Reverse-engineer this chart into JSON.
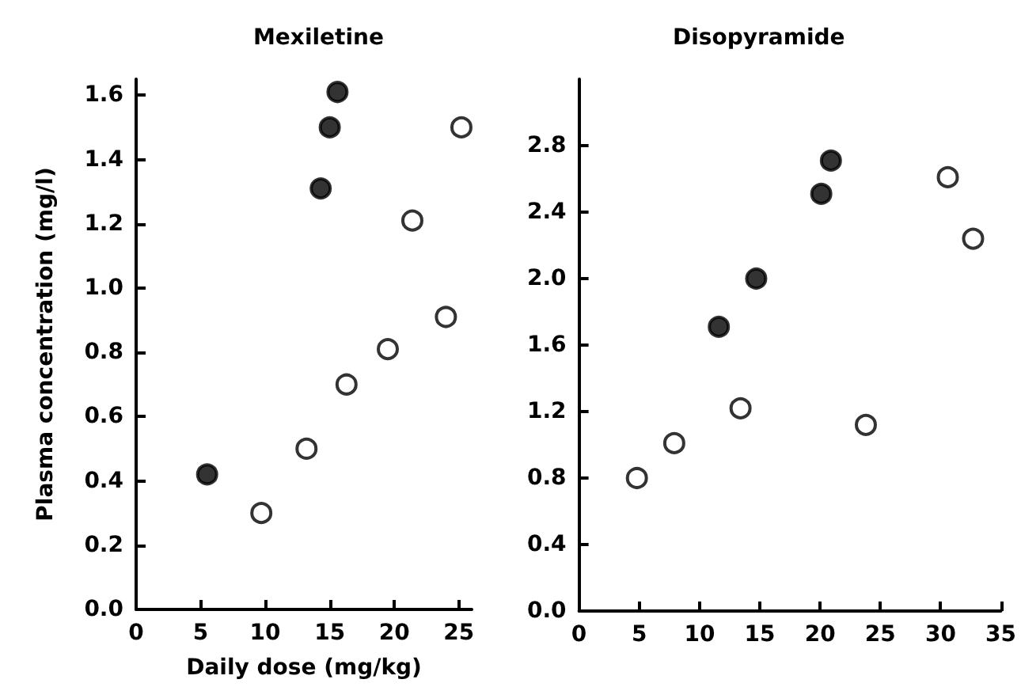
{
  "chart_data": [
    {
      "type": "scatter",
      "title": "Mexiletine",
      "xlabel": "Daily dose (mg/kg)",
      "ylabel": "Plasma concentration (mg/l)",
      "marker": "circle",
      "grid": false,
      "series": [
        {
          "color": "#000000",
          "x": [
            5.5,
            14.3,
            15,
            15.6
          ],
          "values": [
            0.42,
            1.31,
            1.5,
            1.61
          ]
        },
        {
          "color": "#ffffff",
          "x": [
            9.7,
            13.2,
            16.3,
            19.5,
            21.4,
            24,
            25.2
          ],
          "values": [
            0.3,
            0.5,
            0.7,
            0.81,
            1.21,
            0.91,
            1.5
          ]
        }
      ],
      "xlim": [
        0,
        26
      ],
      "xticks": [
        0,
        5,
        10,
        15,
        20,
        25
      ],
      "ylim": [
        0,
        1.65
      ],
      "yticks": [
        {
          "value": 0,
          "label": "0.0"
        },
        {
          "value": 0.2,
          "label": "0.2"
        },
        {
          "value": 0.4,
          "label": "0.4"
        },
        {
          "value": 0.6,
          "label": "0.6"
        },
        {
          "value": 0.8,
          "label": "0.8"
        },
        {
          "value": 1,
          "label": "1.0"
        },
        {
          "value": 1.2,
          "label": "1.2"
        },
        {
          "value": 1.4,
          "label": "1.4"
        },
        {
          "value": 1.6,
          "label": "1.6"
        }
      ]
    },
    {
      "type": "scatter",
      "title": "Disopyramide",
      "marker": "circle",
      "grid": false,
      "series": [
        {
          "color": "#000000",
          "x": [
            11.6,
            14.7,
            20.1,
            20.9
          ],
          "values": [
            1.71,
            2.0,
            2.51,
            2.71
          ]
        },
        {
          "color": "#ffffff",
          "x": [
            4.8,
            7.9,
            13.4,
            23.8,
            30.6,
            32.7
          ],
          "values": [
            0.8,
            1.01,
            1.22,
            1.12,
            2.61,
            2.24
          ]
        }
      ],
      "xlim": [
        0,
        35
      ],
      "xticks": [
        0,
        5,
        10,
        15,
        20,
        25,
        30,
        35
      ],
      "ylim": [
        0,
        3.2
      ],
      "yticks": [
        {
          "value": 0,
          "label": "0.0"
        },
        {
          "value": 0.4,
          "label": "0.4"
        },
        {
          "value": 0.8,
          "label": "0.8"
        },
        {
          "value": 1.2,
          "label": "1.2"
        },
        {
          "value": 1.6,
          "label": "1.6"
        },
        {
          "value": 2,
          "label": "2.0"
        },
        {
          "value": 2.4,
          "label": "2.4"
        },
        {
          "value": 2.8,
          "label": "2.8"
        }
      ]
    }
  ]
}
